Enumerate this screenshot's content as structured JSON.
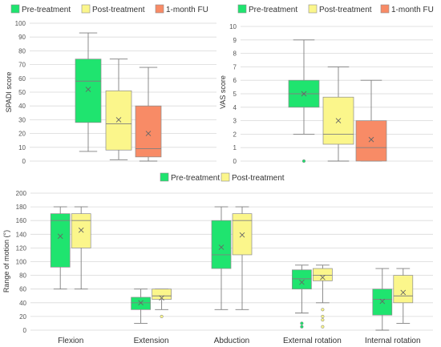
{
  "colors": {
    "pre": "#1fe46f",
    "post": "#fbf68b",
    "fu": "#f88b66",
    "grid": "#d9d9d9",
    "line": "#7f7f7f",
    "box_stroke": "#8c8c8c"
  },
  "chart_data": [
    {
      "type": "box",
      "ylabel": "SPADI score",
      "ylim": [
        0,
        100
      ],
      "ytick_step": 10,
      "legend": "top",
      "grid": true,
      "series": [
        {
          "name": "Pre-treatment",
          "color_key": "pre",
          "min": 7,
          "q1": 28,
          "median": 58,
          "q3": 74,
          "max": 93,
          "mean": 52,
          "outliers": []
        },
        {
          "name": "Post-treatment",
          "color_key": "post",
          "min": 1,
          "q1": 8,
          "median": 27,
          "q3": 51,
          "max": 74,
          "mean": 30,
          "outliers": []
        },
        {
          "name": "1-month FU",
          "color_key": "fu",
          "min": 0,
          "q1": 3,
          "median": 9,
          "q3": 40,
          "max": 68,
          "mean": 20,
          "outliers": []
        }
      ]
    },
    {
      "type": "box",
      "ylabel": "VAS score",
      "ylim": [
        0,
        10
      ],
      "ytick_step": 1,
      "legend": "top",
      "grid": true,
      "series": [
        {
          "name": "Pre-treatment",
          "color_key": "pre",
          "min": 2,
          "q1": 4,
          "median": 5,
          "q3": 6,
          "max": 9,
          "mean": 5,
          "outliers": [
            0
          ]
        },
        {
          "name": "Post-treatment",
          "color_key": "post",
          "min": 0,
          "q1": 1.25,
          "median": 2,
          "q3": 4.75,
          "max": 7,
          "mean": 3,
          "outliers": []
        },
        {
          "name": "1-month FU",
          "color_key": "fu",
          "min": 0,
          "q1": 0,
          "median": 1,
          "q3": 3,
          "max": 6,
          "mean": 1.6,
          "outliers": []
        }
      ]
    },
    {
      "type": "box",
      "ylabel": "Range of motion (°)",
      "ylim": [
        0,
        200
      ],
      "ytick_step": 20,
      "legend": "top",
      "grid": true,
      "categories": [
        "Flexion",
        "Extension",
        "Abduction",
        "External rotation",
        "Internal rotation"
      ],
      "series": [
        {
          "name": "Pre-treatment",
          "color_key": "pre",
          "boxes": [
            {
              "min": 60,
              "q1": 92,
              "median": 160,
              "q3": 170,
              "max": 180,
              "mean": 137,
              "outliers": []
            },
            {
              "min": 10,
              "q1": 30,
              "median": 40,
              "q3": 48,
              "max": 60,
              "mean": 40,
              "outliers": []
            },
            {
              "min": 30,
              "q1": 90,
              "median": 110,
              "q3": 160,
              "max": 180,
              "mean": 121,
              "outliers": []
            },
            {
              "min": 25,
              "q1": 60,
              "median": 75,
              "q3": 88,
              "max": 95,
              "mean": 70,
              "outliers": [
                5,
                10
              ]
            },
            {
              "min": 0,
              "q1": 22,
              "median": 45,
              "q3": 60,
              "max": 90,
              "mean": 42,
              "outliers": []
            }
          ]
        },
        {
          "name": "Post-treatment",
          "color_key": "post",
          "boxes": [
            {
              "min": 60,
              "q1": 120,
              "median": 160,
              "q3": 170,
              "max": 180,
              "mean": 146,
              "outliers": []
            },
            {
              "min": 30,
              "q1": 45,
              "median": 50,
              "q3": 60,
              "max": 60,
              "mean": 47,
              "outliers": [
                20
              ]
            },
            {
              "min": 30,
              "q1": 110,
              "median": 160,
              "q3": 170,
              "max": 180,
              "mean": 139,
              "outliers": []
            },
            {
              "min": 40,
              "q1": 72,
              "median": 80,
              "q3": 90,
              "max": 95,
              "mean": 77,
              "outliers": [
                5,
                15,
                20,
                30
              ]
            },
            {
              "min": 10,
              "q1": 40,
              "median": 50,
              "q3": 80,
              "max": 90,
              "mean": 55,
              "outliers": []
            }
          ]
        }
      ]
    }
  ]
}
